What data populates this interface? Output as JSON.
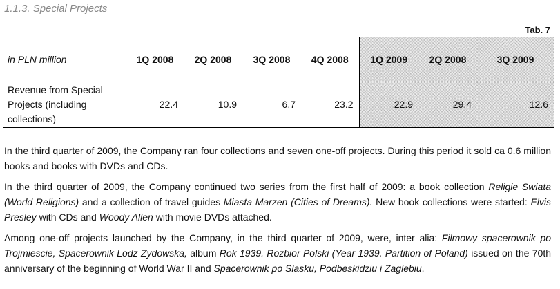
{
  "section_title": "1.1.3. Special Projects",
  "table_label": "Tab. 7",
  "table": {
    "unit": "in PLN million",
    "columns": [
      "1Q 2008",
      "2Q 2008",
      "3Q 2008",
      "4Q 2008",
      "1Q 2009",
      "2Q 2008",
      "3Q 2009"
    ],
    "row": {
      "label_lines": [
        "Revenue from Special",
        "Projects (including",
        "collections)"
      ],
      "values": [
        "22.4",
        "10.9",
        "6.7",
        "23.2",
        "22.9",
        "29.4",
        "12.6"
      ]
    }
  },
  "paragraphs": [
    {
      "segments": [
        {
          "t": "In the third quarter of 2009, the Company ran four collections and seven one-off projects. During this period it sold ca 0.6 million books and books with DVDs and CDs."
        }
      ]
    },
    {
      "segments": [
        {
          "t": "In the third quarter of 2009, the Company continued two series from the first half of 2009: a book collection "
        },
        {
          "t": "Religie Swiata (World Religions)",
          "i": true
        },
        {
          "t": " and a collection of travel guides "
        },
        {
          "t": "Miasta Marzen (Cities of Dreams).",
          "i": true
        },
        {
          "t": " New book collections were started: "
        },
        {
          "t": "Elvis Presley",
          "i": true
        },
        {
          "t": " with CDs and "
        },
        {
          "t": "Woody Allen",
          "i": true
        },
        {
          "t": " with movie DVDs attached."
        }
      ]
    },
    {
      "segments": [
        {
          "t": "Among one-off projects launched by the Company, in the third quarter of 2009, were, inter alia: "
        },
        {
          "t": "Filmowy spacerownik po Trojmiescie, Spacerownik Lodz Zydowska,",
          "i": true
        },
        {
          "t": " album "
        },
        {
          "t": "Rok 1939. Rozbior Polski (Year 1939. Partition of Poland)",
          "i": true
        },
        {
          "t": " issued on the 70th anniversary of the beginning of World War II and "
        },
        {
          "t": "Spacerownik po Slasku, Podbeskidziu i Zaglebiu",
          "i": true
        },
        {
          "t": "."
        }
      ]
    }
  ]
}
